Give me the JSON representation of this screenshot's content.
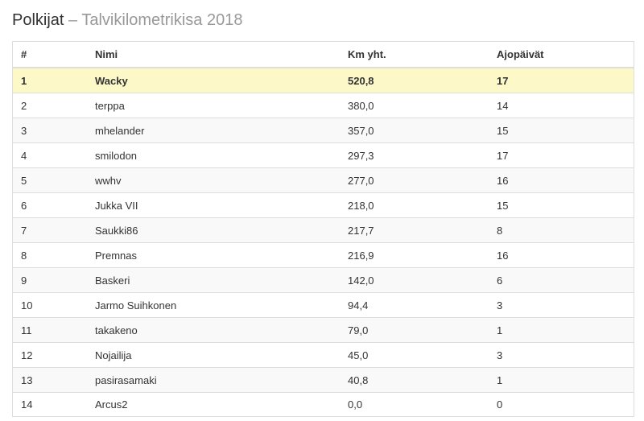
{
  "page": {
    "title_main": "Polkijat",
    "title_separator": " – ",
    "title_sub": "Talvikilometrikisa 2018"
  },
  "table": {
    "columns": [
      "#",
      "Nimi",
      "Km yht.",
      "Ajopäivät"
    ],
    "rows": [
      {
        "rank": "1",
        "name": "Wacky",
        "km": "520,8",
        "days": "17",
        "highlight": true
      },
      {
        "rank": "2",
        "name": "terppa",
        "km": "380,0",
        "days": "14"
      },
      {
        "rank": "3",
        "name": "mhelander",
        "km": "357,0",
        "days": "15"
      },
      {
        "rank": "4",
        "name": "smilodon",
        "km": "297,3",
        "days": "17"
      },
      {
        "rank": "5",
        "name": "wwhv",
        "km": "277,0",
        "days": "16"
      },
      {
        "rank": "6",
        "name": "Jukka VII",
        "km": "218,0",
        "days": "15"
      },
      {
        "rank": "7",
        "name": "Saukki86",
        "km": "217,7",
        "days": "8"
      },
      {
        "rank": "8",
        "name": "Premnas",
        "km": "216,9",
        "days": "16"
      },
      {
        "rank": "9",
        "name": "Baskeri",
        "km": "142,0",
        "days": "6"
      },
      {
        "rank": "10",
        "name": "Jarmo Suihkonen",
        "km": "94,4",
        "days": "3"
      },
      {
        "rank": "11",
        "name": "takakeno",
        "km": "79,0",
        "days": "1"
      },
      {
        "rank": "12",
        "name": "Nojailija",
        "km": "45,0",
        "days": "3"
      },
      {
        "rank": "13",
        "name": "pasirasamaki",
        "km": "40,8",
        "days": "1"
      },
      {
        "rank": "14",
        "name": "Arcus2",
        "km": "0,0",
        "days": "0"
      }
    ]
  }
}
